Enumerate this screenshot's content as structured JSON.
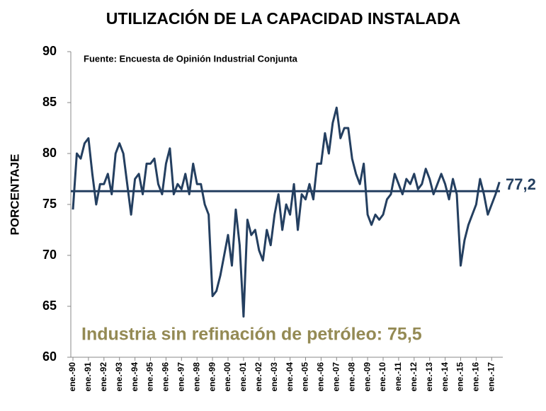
{
  "chart_data": {
    "type": "line",
    "title": "UTILIZACIÓN DE LA CAPACIDAD INSTALADA",
    "subtitle": "Fuente: Encuesta de Opinión Industrial Conjunta",
    "y_label": "PORCENTAJE",
    "annotation": "Industria sin refinación de petróleo: 75,5",
    "end_label": "77,2",
    "reference_line": 76.3,
    "categories": [
      "ene.-90",
      null,
      null,
      null,
      "ene.-91",
      null,
      null,
      null,
      "ene.-92",
      null,
      null,
      null,
      "ene.-93",
      null,
      null,
      null,
      "ene.-94",
      null,
      null,
      null,
      "ene.-95",
      null,
      null,
      null,
      "ene.-96",
      null,
      null,
      null,
      "ene.-97",
      null,
      null,
      null,
      "ene.-98",
      null,
      null,
      null,
      "ene.-99",
      null,
      null,
      null,
      "ene.-00",
      null,
      null,
      null,
      "ene.-01",
      null,
      null,
      null,
      "ene.-02",
      null,
      null,
      null,
      "ene.-03",
      null,
      null,
      null,
      "ene.-04",
      null,
      null,
      null,
      "ene.-05",
      null,
      null,
      null,
      "ene.-06",
      null,
      null,
      null,
      "ene.-07",
      null,
      null,
      null,
      "ene.-08",
      null,
      null,
      null,
      "ene.-09",
      null,
      null,
      null,
      "ene.-10",
      null,
      null,
      null,
      "ene.-11",
      null,
      null,
      null,
      "ene.-12",
      null,
      null,
      null,
      "ene.-13",
      null,
      null,
      null,
      "ene.-14",
      null,
      null,
      null,
      "ene.-15",
      null,
      null,
      null,
      "ene.-16",
      null,
      null,
      null,
      "ene.-17",
      null,
      null
    ],
    "series": [
      {
        "name": "Utilización",
        "color": "#243f60",
        "values": [
          74.5,
          80,
          79.5,
          81,
          81.5,
          78,
          75,
          77,
          77,
          78,
          76,
          80,
          81,
          80,
          77,
          74,
          77.5,
          78,
          76,
          79,
          79,
          79.5,
          77,
          76,
          79,
          80.5,
          76,
          77,
          76.5,
          78,
          76,
          79,
          77,
          77,
          75,
          74,
          66,
          66.5,
          68,
          70,
          72,
          69,
          74.5,
          71,
          64,
          73.5,
          72,
          72.5,
          70.5,
          69.5,
          72.5,
          71,
          74,
          76,
          72.5,
          75,
          74,
          77,
          72.5,
          76,
          75.5,
          77,
          75.5,
          79,
          79,
          82,
          80,
          83,
          84.5,
          81.5,
          82.5,
          82.5,
          79.5,
          78,
          77,
          79,
          74,
          73,
          74,
          73.5,
          74,
          75.5,
          76,
          78,
          77,
          76,
          77.5,
          77,
          78,
          76.5,
          77,
          78.5,
          77.5,
          76,
          77,
          78,
          77,
          75.5,
          77.5,
          76,
          69,
          71.5,
          73,
          74,
          75,
          77.5,
          76,
          74,
          75,
          76,
          77.2
        ]
      }
    ],
    "ylim": [
      60,
      90
    ],
    "yticks": [
      60,
      65,
      70,
      75,
      80,
      85,
      90
    ]
  }
}
